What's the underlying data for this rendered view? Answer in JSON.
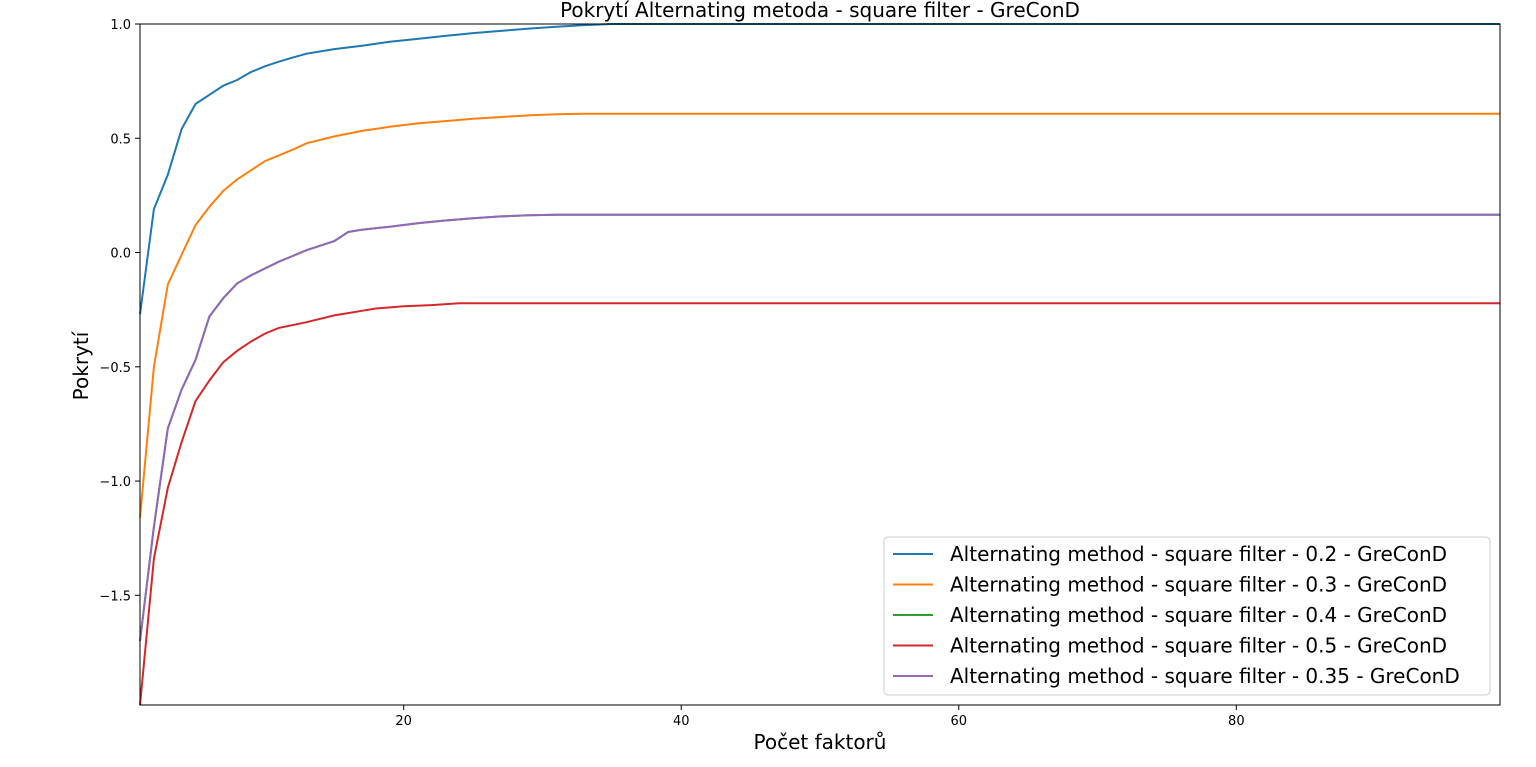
{
  "chart_data": {
    "type": "line",
    "title": "Pokrytí Alternating metoda - square filter - GreConD",
    "xlabel": "Počet faktorů",
    "ylabel": "Pokrytí",
    "xlim": [
      1,
      99
    ],
    "ylim": [
      -1.98,
      1.0
    ],
    "x_ticks": [
      20,
      40,
      60,
      80
    ],
    "y_ticks": [
      1.0,
      0.5,
      0.0,
      -0.5,
      -1.0,
      -1.5
    ],
    "y_tick_labels": [
      "1.0",
      "0.5",
      "0.0",
      "−0.5",
      "−1.0",
      "−1.5"
    ],
    "grid": false,
    "legend_position": "lower-right",
    "series": [
      {
        "name": "Alternating method - square filter - 0.2 - GreConD",
        "color": "#1f77b4",
        "points": [
          [
            1,
            -0.27
          ],
          [
            2,
            0.19
          ],
          [
            3,
            0.34
          ],
          [
            4,
            0.54
          ],
          [
            5,
            0.65
          ],
          [
            6,
            0.69
          ],
          [
            7,
            0.73
          ],
          [
            8,
            0.755
          ],
          [
            9,
            0.79
          ],
          [
            10,
            0.815
          ],
          [
            11,
            0.835
          ],
          [
            12,
            0.853
          ],
          [
            13,
            0.87
          ],
          [
            15,
            0.89
          ],
          [
            17,
            0.905
          ],
          [
            19,
            0.922
          ],
          [
            21,
            0.935
          ],
          [
            23,
            0.948
          ],
          [
            25,
            0.96
          ],
          [
            27,
            0.97
          ],
          [
            29,
            0.98
          ],
          [
            31,
            0.988
          ],
          [
            33,
            0.995
          ],
          [
            35,
            1.0
          ],
          [
            99,
            1.0
          ]
        ]
      },
      {
        "name": "Alternating method - square filter - 0.3 - GreConD",
        "color": "#ff7f0e",
        "points": [
          [
            1,
            -1.16
          ],
          [
            2,
            -0.5
          ],
          [
            3,
            -0.14
          ],
          [
            4,
            -0.01
          ],
          [
            5,
            0.12
          ],
          [
            6,
            0.2
          ],
          [
            7,
            0.27
          ],
          [
            8,
            0.32
          ],
          [
            9,
            0.36
          ],
          [
            10,
            0.4
          ],
          [
            11,
            0.425
          ],
          [
            12,
            0.45
          ],
          [
            13,
            0.478
          ],
          [
            15,
            0.508
          ],
          [
            17,
            0.532
          ],
          [
            19,
            0.55
          ],
          [
            21,
            0.565
          ],
          [
            23,
            0.575
          ],
          [
            25,
            0.585
          ],
          [
            27,
            0.593
          ],
          [
            29,
            0.6
          ],
          [
            31,
            0.605
          ],
          [
            33,
            0.607
          ],
          [
            99,
            0.607
          ]
        ]
      },
      {
        "name": "Alternating method - square filter - 0.4 - GreConD",
        "color": "#2ca02c",
        "points": [
          [
            1,
            -1.7
          ],
          [
            2,
            -1.2
          ],
          [
            3,
            -0.77
          ],
          [
            4,
            -0.6
          ],
          [
            5,
            -0.47
          ],
          [
            6,
            -0.28
          ],
          [
            7,
            -0.2
          ],
          [
            8,
            -0.135
          ],
          [
            9,
            -0.1
          ],
          [
            10,
            -0.07
          ],
          [
            11,
            -0.04
          ],
          [
            12,
            -0.015
          ],
          [
            13,
            0.01
          ],
          [
            15,
            0.05
          ],
          [
            16,
            0.09
          ],
          [
            17,
            0.1
          ],
          [
            19,
            0.113
          ],
          [
            21,
            0.128
          ],
          [
            23,
            0.14
          ],
          [
            25,
            0.15
          ],
          [
            27,
            0.158
          ],
          [
            29,
            0.163
          ],
          [
            31,
            0.165
          ],
          [
            99,
            0.165
          ]
        ]
      },
      {
        "name": "Alternating method - square filter - 0.5 - GreConD",
        "color": "#d62728",
        "points": [
          [
            1,
            -1.98
          ],
          [
            2,
            -1.34
          ],
          [
            3,
            -1.03
          ],
          [
            4,
            -0.83
          ],
          [
            5,
            -0.65
          ],
          [
            6,
            -0.56
          ],
          [
            7,
            -0.48
          ],
          [
            8,
            -0.43
          ],
          [
            9,
            -0.39
          ],
          [
            10,
            -0.355
          ],
          [
            11,
            -0.33
          ],
          [
            13,
            -0.305
          ],
          [
            15,
            -0.275
          ],
          [
            17,
            -0.255
          ],
          [
            18,
            -0.245
          ],
          [
            20,
            -0.235
          ],
          [
            22,
            -0.23
          ],
          [
            24,
            -0.222
          ],
          [
            99,
            -0.222
          ]
        ]
      },
      {
        "name": "Alternating method - square filter - 0.35 - GreConD",
        "color": "#9467bd",
        "points": [
          [
            1,
            -1.7
          ],
          [
            2,
            -1.2
          ],
          [
            3,
            -0.77
          ],
          [
            4,
            -0.6
          ],
          [
            5,
            -0.47
          ],
          [
            6,
            -0.28
          ],
          [
            7,
            -0.2
          ],
          [
            8,
            -0.135
          ],
          [
            9,
            -0.1
          ],
          [
            10,
            -0.07
          ],
          [
            11,
            -0.04
          ],
          [
            12,
            -0.015
          ],
          [
            13,
            0.01
          ],
          [
            15,
            0.05
          ],
          [
            16,
            0.09
          ],
          [
            17,
            0.1
          ],
          [
            19,
            0.113
          ],
          [
            21,
            0.128
          ],
          [
            23,
            0.14
          ],
          [
            25,
            0.15
          ],
          [
            27,
            0.158
          ],
          [
            29,
            0.163
          ],
          [
            31,
            0.165
          ],
          [
            99,
            0.165
          ]
        ]
      }
    ]
  }
}
